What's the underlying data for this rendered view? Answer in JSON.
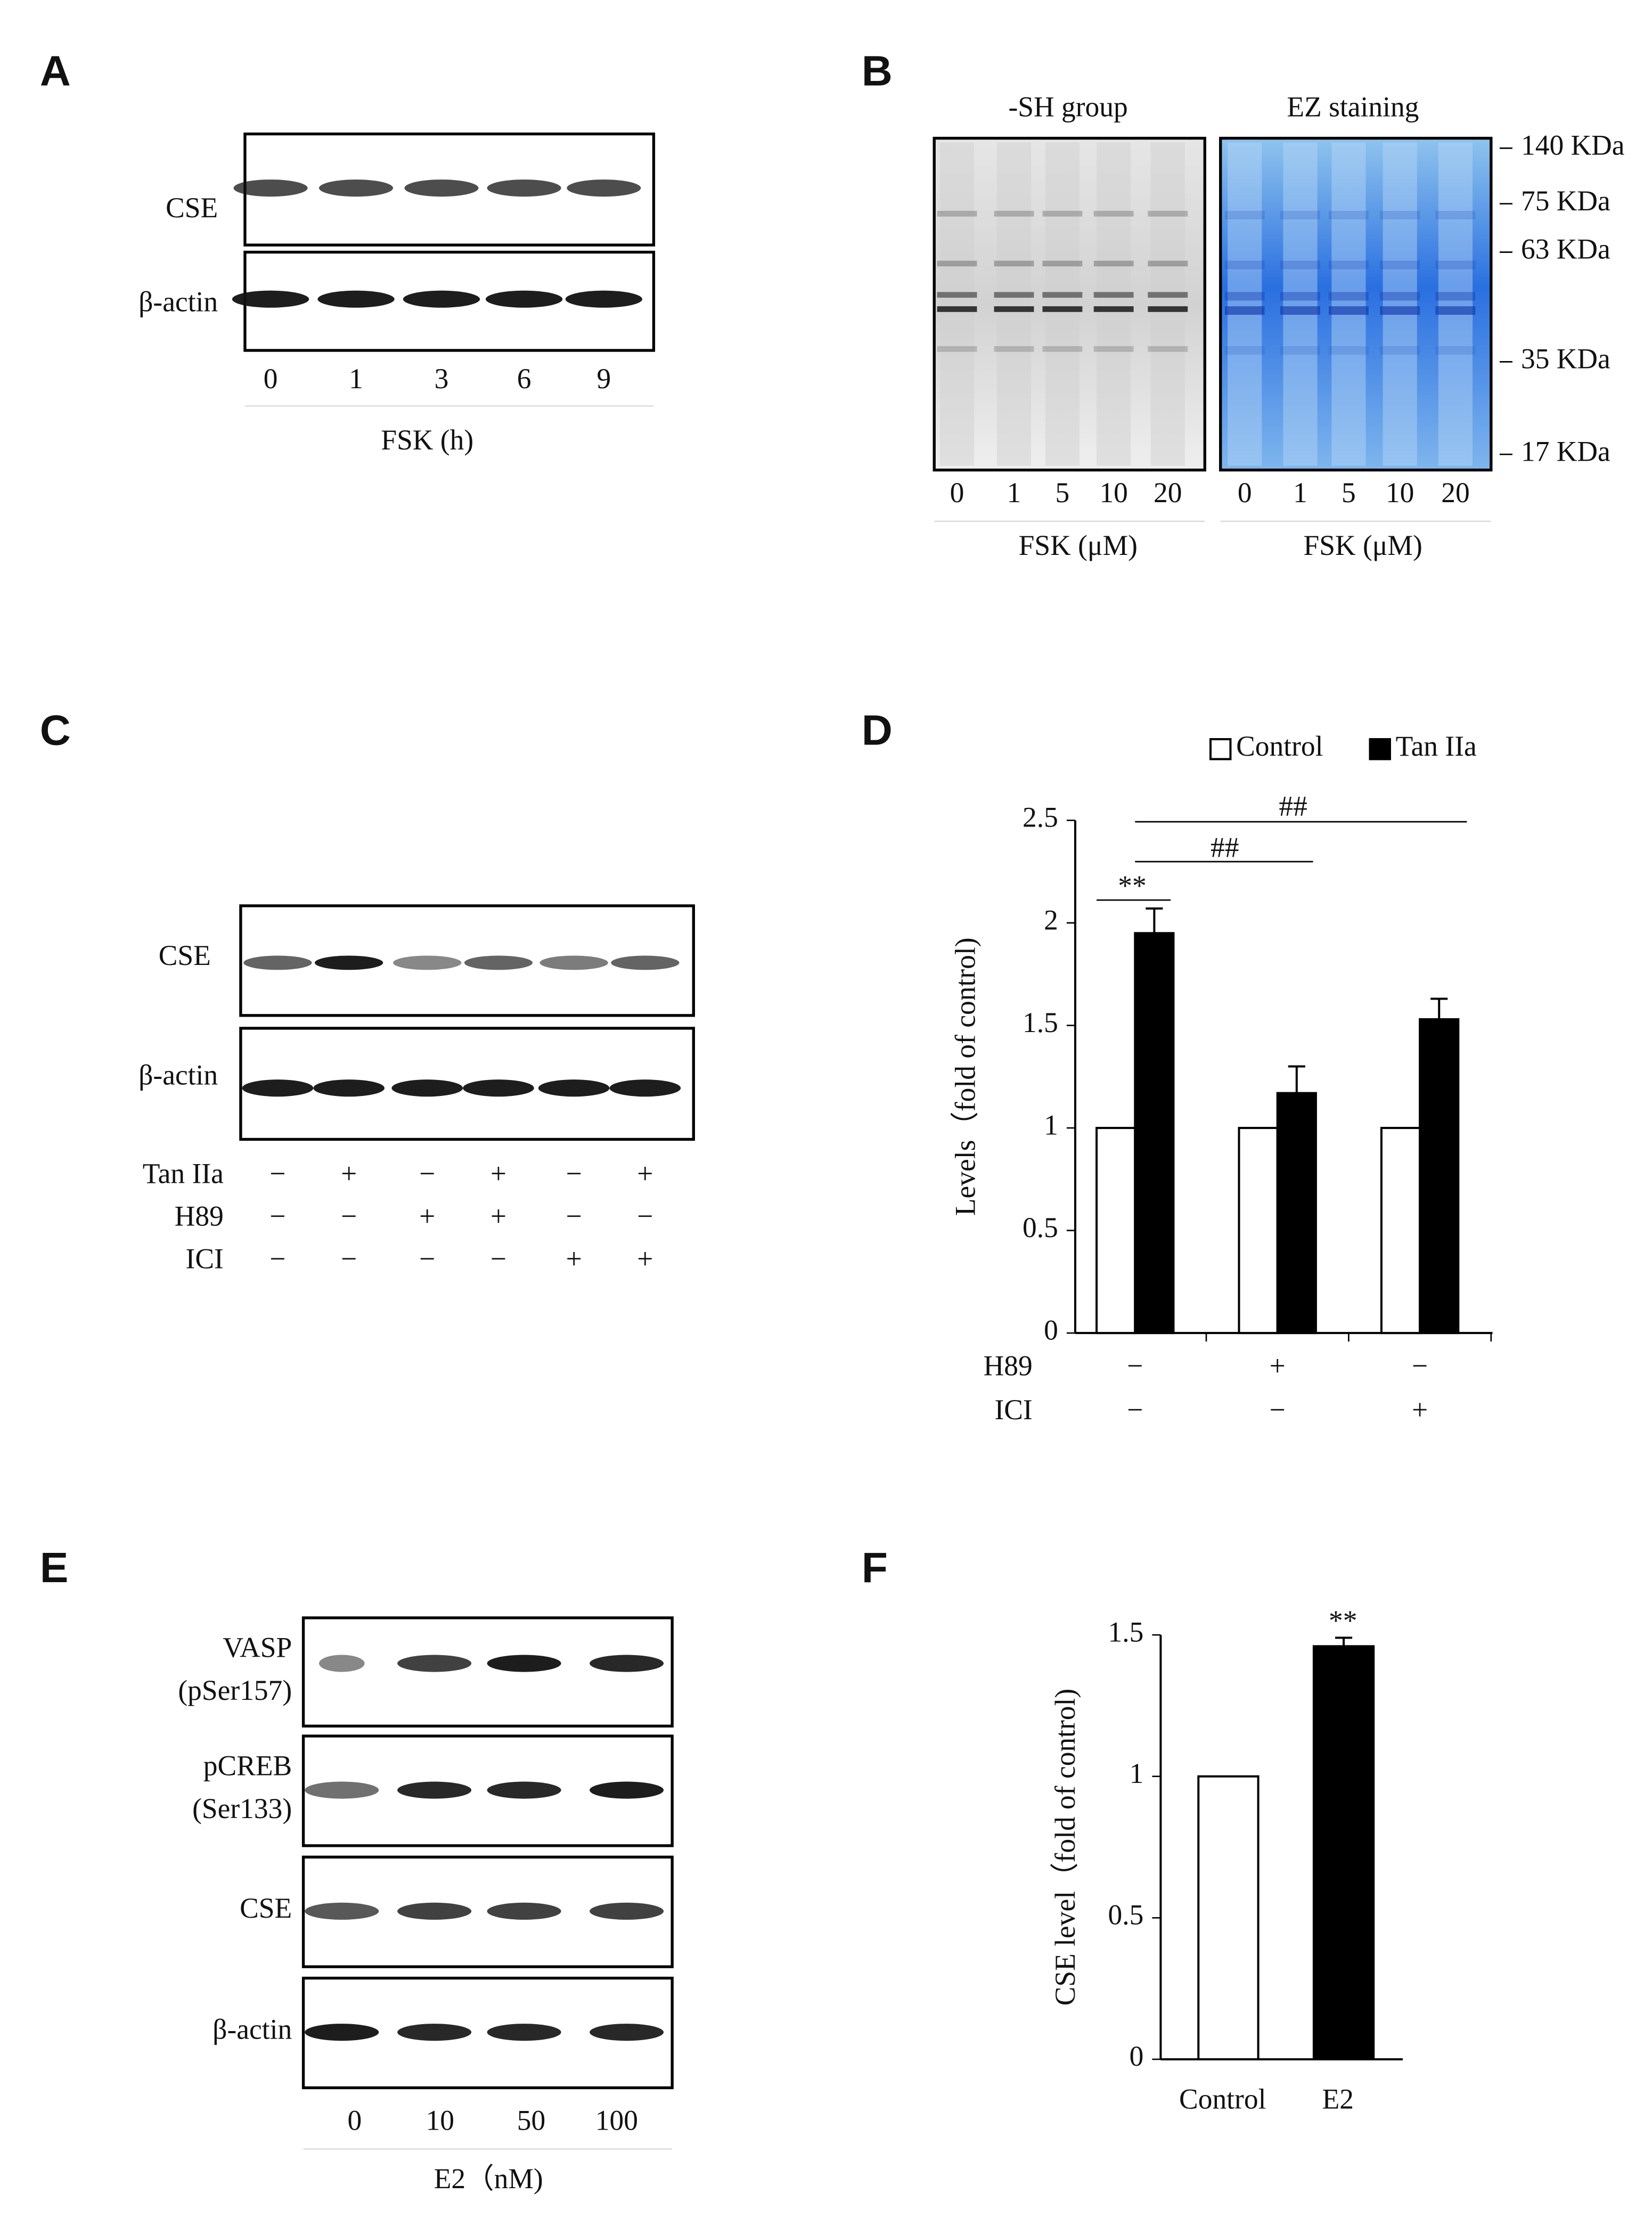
{
  "panels": {
    "A": {
      "label": "A",
      "bands": [
        "CSE",
        "β-actin"
      ],
      "lanes": [
        "0",
        "1",
        "3",
        "6",
        "9"
      ],
      "xlabel": "FSK (h)"
    },
    "B": {
      "label": "B",
      "gels": [
        "-SH group",
        "EZ staining"
      ],
      "lanes": [
        "0",
        "1",
        "5",
        "10",
        "20"
      ],
      "xlabel": "FSK (μM)",
      "markers": [
        "140 KDa",
        "75 KDa",
        "63 KDa",
        "35 KDa",
        "17 KDa"
      ]
    },
    "C": {
      "label": "C",
      "bands": [
        "CSE",
        "β-actin"
      ],
      "treatments": [
        {
          "name": "Tan IIa",
          "signs": [
            "−",
            "+",
            "−",
            "+",
            "−",
            "+"
          ]
        },
        {
          "name": "H89",
          "signs": [
            "−",
            "−",
            "+",
            "+",
            "−",
            "−"
          ]
        },
        {
          "name": "ICI",
          "signs": [
            "−",
            "−",
            "−",
            "−",
            "+",
            "+"
          ]
        }
      ]
    },
    "E": {
      "label": "E",
      "bands": [
        [
          "VASP",
          "(pSer157)"
        ],
        [
          "pCREB",
          "(Ser133)"
        ],
        [
          "CSE"
        ],
        [
          "β-actin"
        ]
      ],
      "lanes": [
        "0",
        "10",
        "50",
        "100"
      ],
      "xlabel": "E2（nM)"
    }
  },
  "chart_data": [
    {
      "type": "bar",
      "label": "D",
      "ylabel": "Levels（fold of control)",
      "conditions": [
        {
          "name": "H89",
          "signs": [
            "−",
            "+",
            "−"
          ]
        },
        {
          "name": "ICI",
          "signs": [
            "−",
            "−",
            "+"
          ]
        }
      ],
      "series": [
        {
          "name": "Control",
          "color": "#ffffff",
          "values": [
            1,
            1,
            1
          ]
        },
        {
          "name": "Tan IIa",
          "color": "#000000",
          "values": [
            1.95,
            1.17,
            1.53
          ],
          "errors": [
            0.12,
            0.13,
            0.1
          ]
        }
      ],
      "ylim": [
        0,
        2.5
      ],
      "yticks": [
        0,
        0.5,
        1,
        1.5,
        2,
        2.5
      ],
      "annotations": [
        "**",
        "##",
        "##"
      ]
    },
    {
      "type": "bar",
      "label": "F",
      "ylabel": "CSE level（fold of control)",
      "categories": [
        "Control",
        "E2"
      ],
      "values": [
        1,
        1.46
      ],
      "errors": [
        null,
        0.03
      ],
      "colors": [
        "#ffffff",
        "#000000"
      ],
      "ylim": [
        0,
        1.5
      ],
      "yticks": [
        0,
        0.5,
        1,
        1.5
      ],
      "annotations": [
        "**"
      ]
    }
  ]
}
